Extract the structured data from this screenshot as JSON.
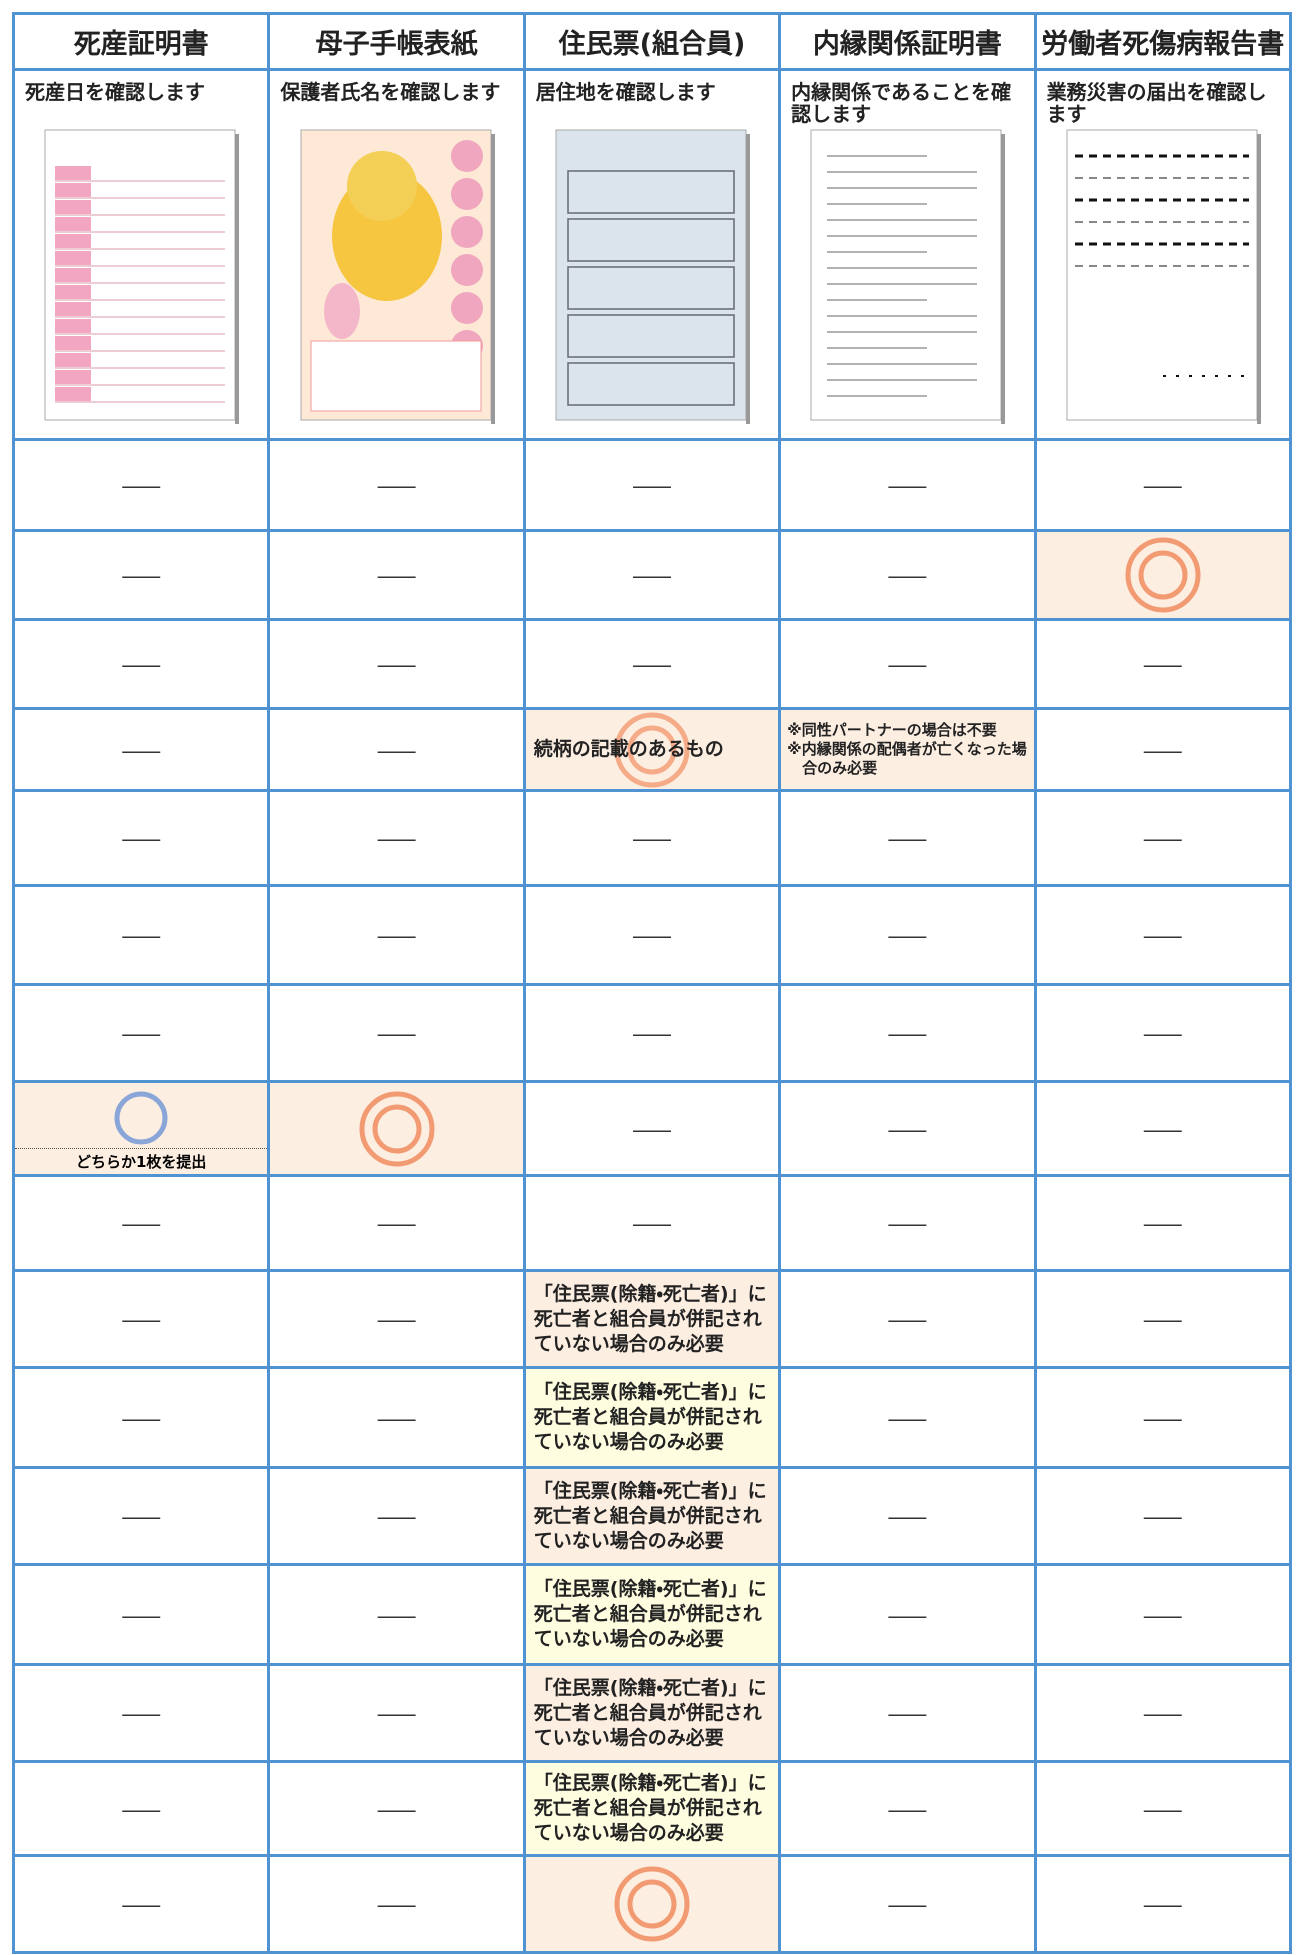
{
  "header": {
    "columns": [
      "死産証明書",
      "母子手帳表紙",
      "住民票(組合員)",
      "内縁関係証明書",
      "労働者死傷病報告書"
    ],
    "descriptions": [
      "死産日を確認します",
      "保護者氏名を確認します",
      "居住地を確認します",
      "内縁関係であることを確認します",
      "業務災害の届出を確認します"
    ]
  },
  "rows": [
    [
      "―",
      "―",
      "―",
      "―",
      "―"
    ],
    [
      "―",
      "―",
      "―",
      "―",
      null
    ],
    [
      "―",
      "―",
      "―",
      "―",
      "―"
    ],
    [
      "―",
      "―",
      "続柄の記載のあるもの",
      [
        "※同性パートナーの場合は不要",
        "※内縁関係の配偶者が亡くなった場合のみ必要"
      ],
      "―"
    ],
    [
      "―",
      "―",
      "―",
      "―",
      "―"
    ],
    [
      "―",
      "―",
      "―",
      "―",
      "―"
    ],
    [
      "―",
      "―",
      "―",
      "―",
      "―"
    ],
    [
      "どちらか1枚を提出",
      null,
      "―",
      "―",
      "―"
    ],
    [
      "―",
      "―",
      "―",
      "―",
      "―"
    ],
    [
      "―",
      "―",
      "「住民票(除籍・死亡者)」に死亡者と組合員が併記されていない場合のみ必要",
      "―",
      "―"
    ],
    [
      "―",
      "―",
      "「住民票(除籍・死亡者)」に死亡者と組合員が併記されていない場合のみ必要",
      "―",
      "―"
    ],
    [
      "―",
      "―",
      "「住民票(除籍・死亡者)」に死亡者と組合員が併記されていない場合のみ必要",
      "―",
      "―"
    ],
    [
      "―",
      "―",
      "「住民票(除籍・死亡者)」に死亡者と組合員が併記されていない場合のみ必要",
      "―",
      "―"
    ],
    [
      "―",
      "―",
      "「住民票(除籍・死亡者)」に死亡者と組合員が併記されていない場合のみ必要",
      "―",
      "―"
    ],
    [
      "―",
      "―",
      "「住民票(除籍・死亡者)」に死亡者と組合員が併記されていない場合のみ必要",
      "―",
      "―"
    ],
    [
      "―",
      "―",
      null,
      "―",
      "―"
    ]
  ]
}
